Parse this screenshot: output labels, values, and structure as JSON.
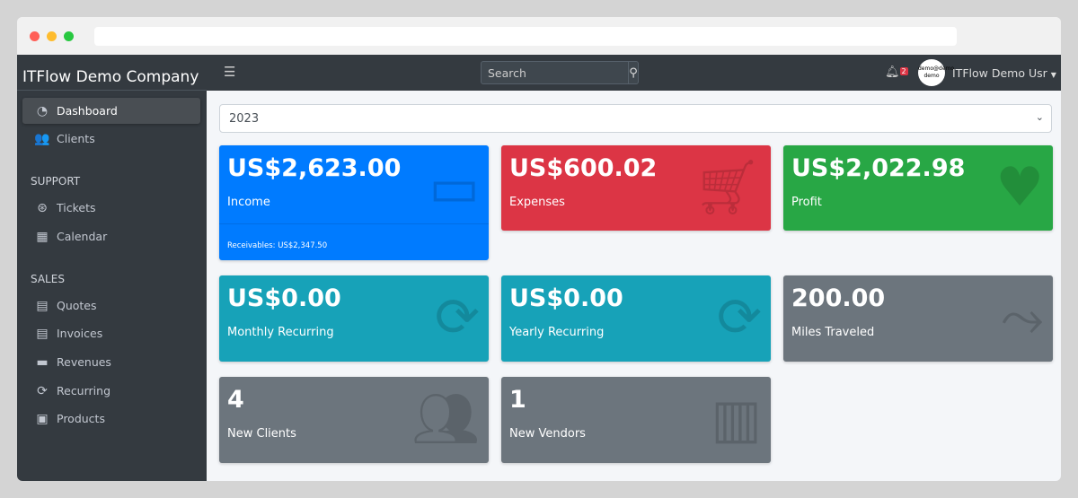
{
  "browser": {
    "dots": [
      "#ff5f57",
      "#febc2e",
      "#28c840"
    ]
  },
  "sidebar": {
    "brand": "ITFlow Demo Company",
    "items": [
      {
        "label": "Dashboard",
        "icon": "tachometer-icon"
      },
      {
        "label": "Clients",
        "icon": "users-icon"
      }
    ],
    "support_header": "SUPPORT",
    "support": [
      {
        "label": "Tickets",
        "icon": "life-ring-icon"
      },
      {
        "label": "Calendar",
        "icon": "calendar-icon"
      }
    ],
    "sales_header": "SALES",
    "sales": [
      {
        "label": "Quotes",
        "icon": "file-icon"
      },
      {
        "label": "Invoices",
        "icon": "invoice-icon"
      },
      {
        "label": "Revenues",
        "icon": "credit-card-icon"
      },
      {
        "label": "Recurring",
        "icon": "sync-icon"
      },
      {
        "label": "Products",
        "icon": "box-icon"
      }
    ]
  },
  "topbar": {
    "search_placeholder": "Search",
    "notifications": "2",
    "avatar_text": "demo@demo demo",
    "user": "ITFlow Demo Usr"
  },
  "filter": {
    "year": "2023"
  },
  "cards": [
    {
      "value": "US$2,623.00",
      "label": "Income",
      "extra": "Receivables: US$2,347.50",
      "color": "#007bff",
      "icon": "credit-card-icon"
    },
    {
      "value": "US$600.02",
      "label": "Expenses",
      "color": "#dc3545",
      "icon": "shopping-cart-icon"
    },
    {
      "value": "US$2,022.98",
      "label": "Profit",
      "color": "#28a745",
      "icon": "heart-icon"
    },
    {
      "value": "US$0.00",
      "label": "Monthly Recurring",
      "color": "#17a2b8",
      "icon": "sync-icon"
    },
    {
      "value": "US$0.00",
      "label": "Yearly Recurring",
      "color": "#17a2b8",
      "icon": "sync-icon"
    },
    {
      "value": "200.00",
      "label": "Miles Traveled",
      "color": "#6c757d",
      "icon": "route-icon"
    },
    {
      "value": "4",
      "label": "New Clients",
      "color": "#6c757d",
      "icon": "users-icon"
    },
    {
      "value": "1",
      "label": "New Vendors",
      "color": "#6c757d",
      "icon": "building-icon"
    }
  ]
}
